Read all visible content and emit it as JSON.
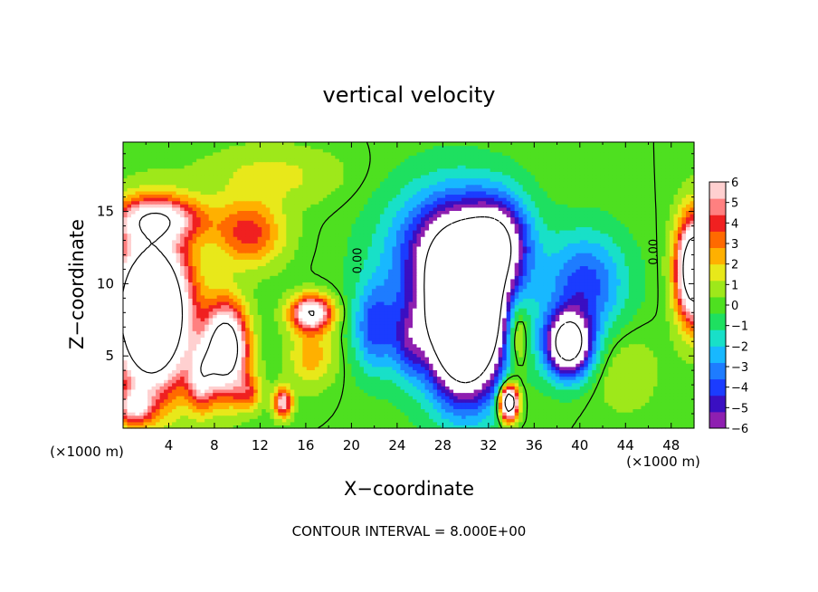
{
  "chart_data": {
    "type": "heatmap",
    "title": "vertical velocity",
    "xlabel": "X−coordinate",
    "ylabel": "Z−coordinate",
    "x_unit": "(×1000 m)",
    "footer": "CONTOUR INTERVAL = 8.000E+00",
    "xlim": [
      0,
      50
    ],
    "ylim": [
      0,
      19.8
    ],
    "xticks": [
      4,
      8,
      12,
      16,
      20,
      24,
      28,
      32,
      36,
      40,
      44,
      48
    ],
    "yticks": [
      5,
      10,
      15
    ],
    "colorbar": {
      "min": -6,
      "max": 6,
      "ticks": [
        "6",
        "5",
        "4",
        "3",
        "2",
        "1",
        "0",
        "−1",
        "−2",
        "−3",
        "−4",
        "−5",
        "−6"
      ],
      "colors": [
        "#8e1fb0",
        "#3a0fc2",
        "#1b3cff",
        "#1e7cff",
        "#18b8ff",
        "#18e0c8",
        "#1ee060",
        "#4ee020",
        "#9ee81a",
        "#e8e81a",
        "#ffb000",
        "#ff6a00",
        "#f02020",
        "#ff8080",
        "#ffd0d0"
      ]
    },
    "contour_labels": [
      {
        "text": "0.00",
        "x": 20.6,
        "y": 11.6
      },
      {
        "text": "0.00",
        "x": 46.5,
        "y": 12.2
      }
    ],
    "field_features": [
      {
        "x": 2.5,
        "y": 8,
        "sx": 3.2,
        "sy": 5,
        "amp": 16
      },
      {
        "x": 9,
        "y": 5.5,
        "sx": 1.8,
        "sy": 3,
        "amp": 11
      },
      {
        "x": 3,
        "y": 14.5,
        "sx": 4,
        "sy": 1.5,
        "amp": 6
      },
      {
        "x": 11,
        "y": 13.5,
        "sx": 3,
        "sy": 2.2,
        "amp": 4
      },
      {
        "x": 16.5,
        "y": 8,
        "sx": 1.8,
        "sy": 1.2,
        "amp": 8
      },
      {
        "x": 14,
        "y": 1.8,
        "sx": 0.8,
        "sy": 1,
        "amp": 6
      },
      {
        "x": 6.8,
        "y": 3.5,
        "sx": 1.2,
        "sy": 2.2,
        "amp": 5
      },
      {
        "x": 1,
        "y": 1.5,
        "sx": 1.5,
        "sy": 1.2,
        "amp": 5
      },
      {
        "x": 11,
        "y": 2.5,
        "sx": 1.2,
        "sy": 1.2,
        "amp": 3
      },
      {
        "x": 13,
        "y": 17.5,
        "sx": 6,
        "sy": 2,
        "amp": 1.5
      },
      {
        "x": 16.5,
        "y": 5,
        "sx": 2,
        "sy": 2,
        "amp": 2.5
      },
      {
        "x": 30,
        "y": 7.5,
        "sx": 3.2,
        "sy": 5,
        "amp": -16
      },
      {
        "x": 29,
        "y": 12.5,
        "sx": 5,
        "sy": 4,
        "amp": -5
      },
      {
        "x": 33,
        "y": 13,
        "sx": 2.5,
        "sy": 3,
        "amp": -5
      },
      {
        "x": 28,
        "y": 10,
        "sx": 6,
        "sy": 6,
        "amp": -2
      },
      {
        "x": 39,
        "y": 5.8,
        "sx": 2,
        "sy": 2.2,
        "amp": -10
      },
      {
        "x": 40.5,
        "y": 10,
        "sx": 3.5,
        "sy": 3.5,
        "amp": -4
      },
      {
        "x": 22,
        "y": 7,
        "sx": 1.8,
        "sy": 3,
        "amp": -3.5
      },
      {
        "x": 25,
        "y": 6,
        "sx": 1.5,
        "sy": 2.5,
        "amp": -3
      },
      {
        "x": 33.8,
        "y": 1.8,
        "sx": 0.8,
        "sy": 1.2,
        "amp": 12
      },
      {
        "x": 34.5,
        "y": 6.5,
        "sx": 1,
        "sy": 2.5,
        "amp": 3.5
      },
      {
        "x": 50,
        "y": 11,
        "sx": 1.5,
        "sy": 3.5,
        "amp": 12
      },
      {
        "x": 44,
        "y": 4,
        "sx": 3,
        "sy": 3,
        "amp": 1
      }
    ]
  }
}
